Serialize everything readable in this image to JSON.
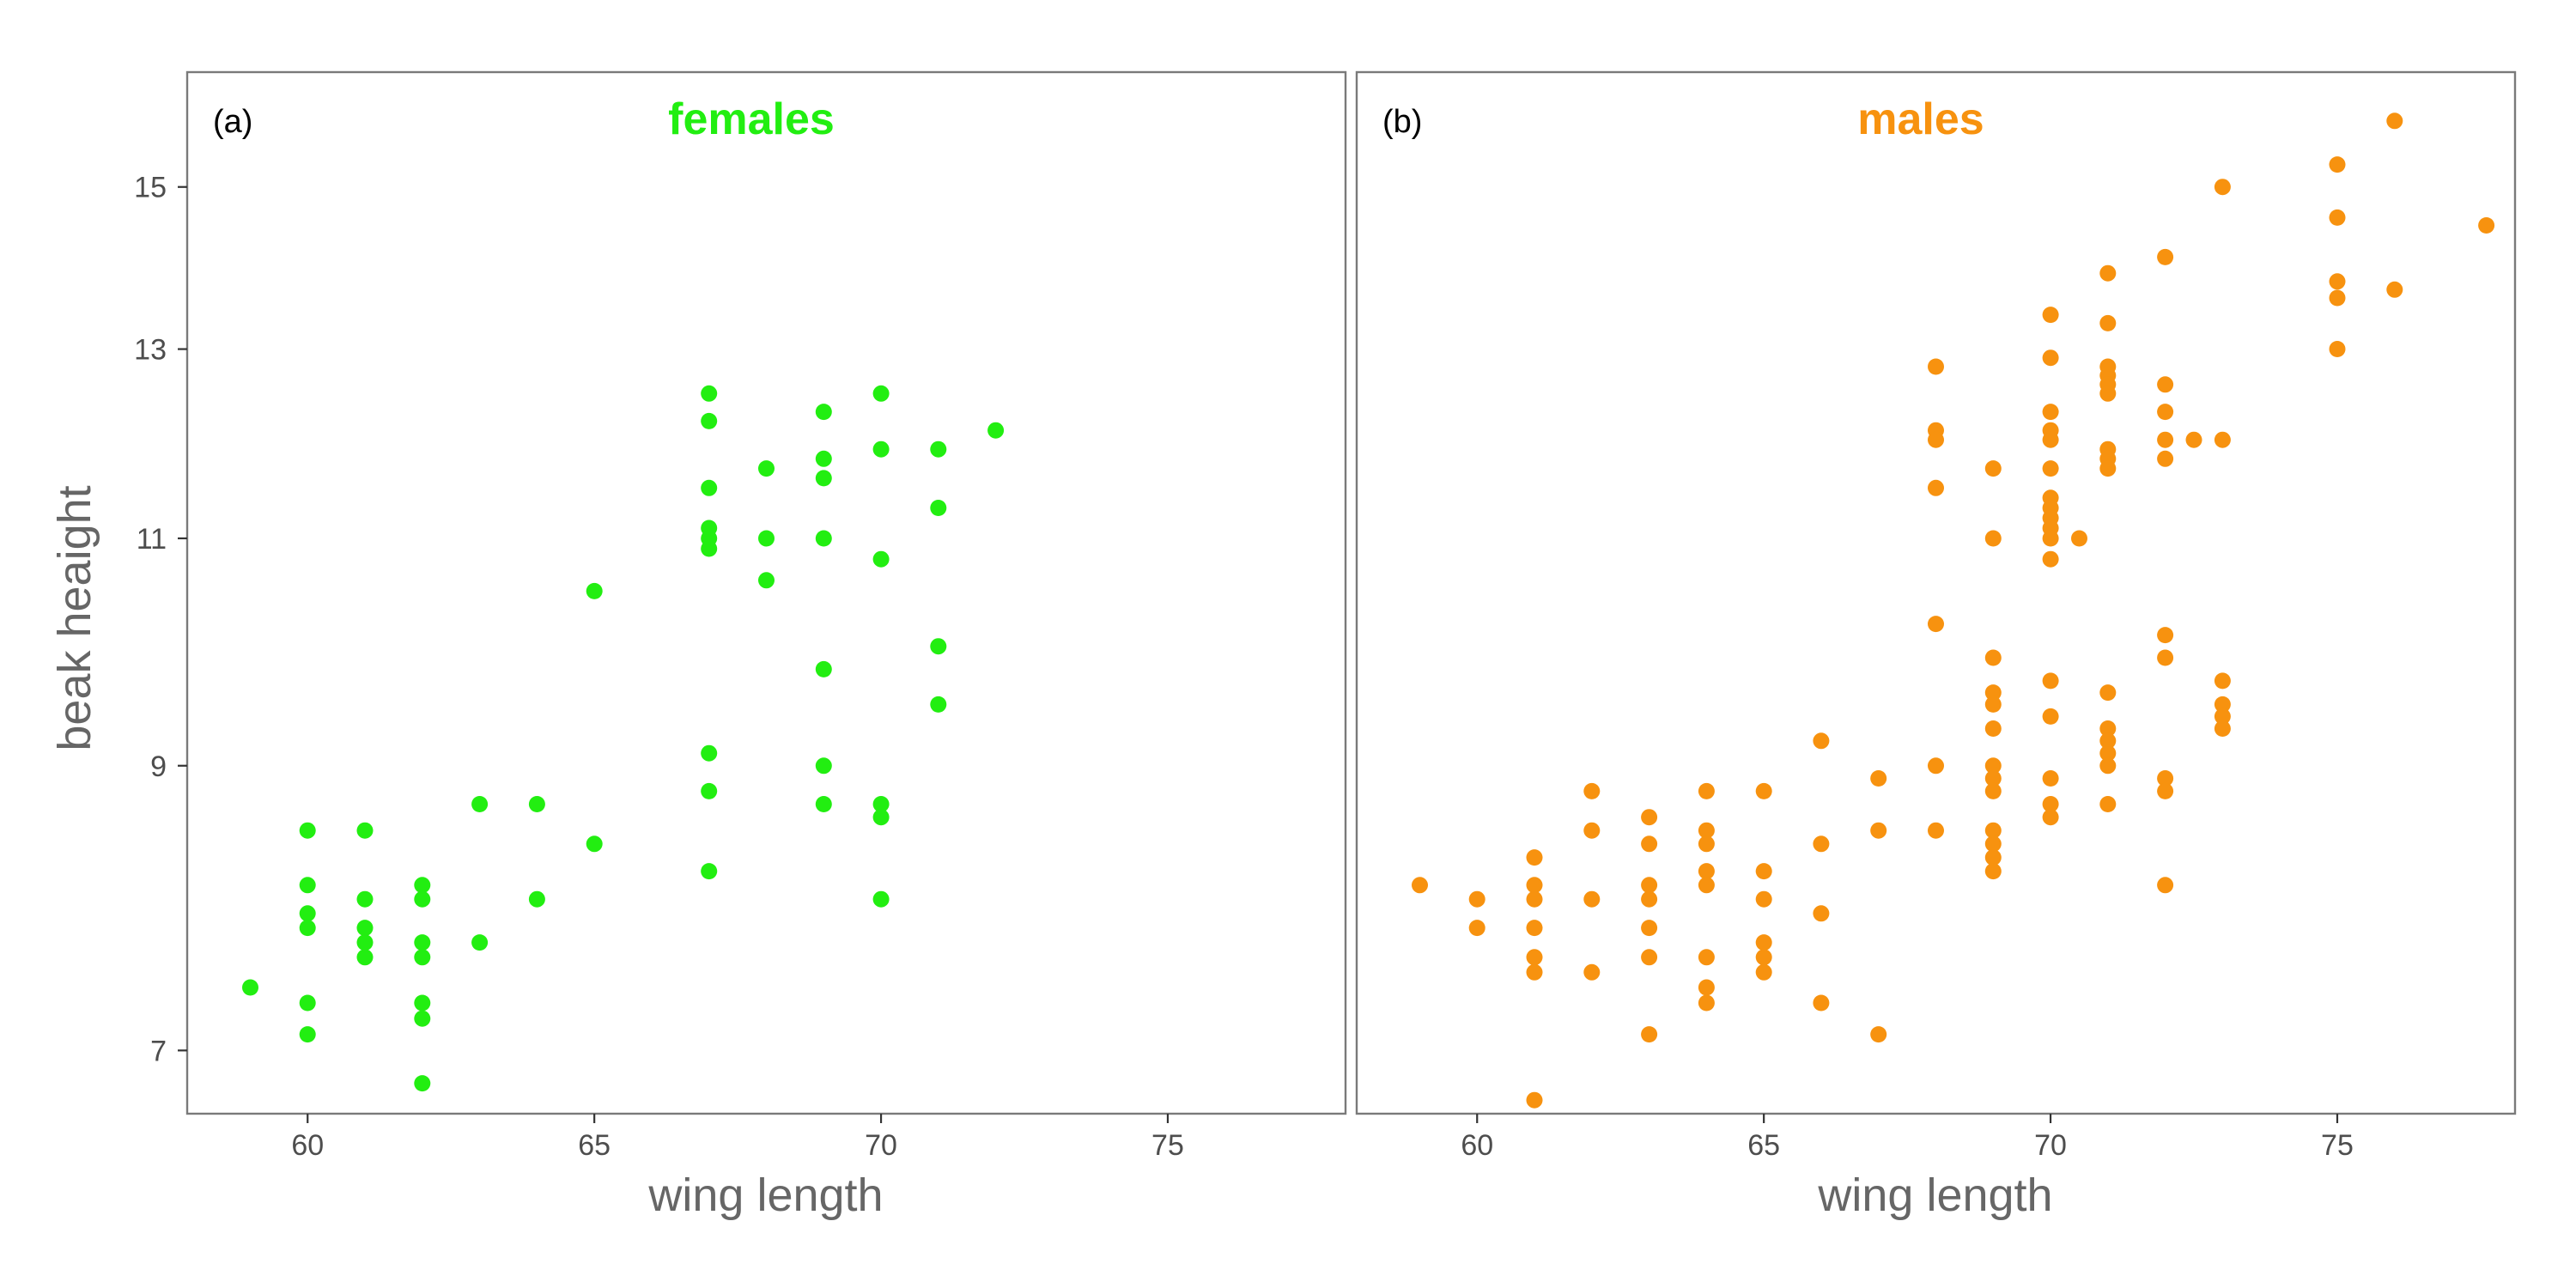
{
  "chart_data": [
    {
      "type": "scatter",
      "tag": "(a)",
      "title": "females",
      "xlabel": "wing length",
      "ylabel": "beak heaight",
      "xlim": [
        57.9,
        78.1
      ],
      "ylim": [
        6.62,
        16.6
      ],
      "y_scale": "log",
      "x_ticks": [
        60,
        65,
        70,
        75
      ],
      "y_ticks": [
        7,
        9,
        11,
        13,
        15
      ],
      "color": "#22ee11",
      "grid": false,
      "points": [
        [
          59,
          7.4
        ],
        [
          60,
          8.5
        ],
        [
          60,
          8.1
        ],
        [
          60,
          7.9
        ],
        [
          60,
          7.8
        ],
        [
          60,
          7.3
        ],
        [
          60,
          7.1
        ],
        [
          61,
          8.5
        ],
        [
          61,
          8.0
        ],
        [
          61,
          7.8
        ],
        [
          61,
          7.7
        ],
        [
          61,
          7.6
        ],
        [
          62,
          8.1
        ],
        [
          62,
          8.0
        ],
        [
          62,
          7.7
        ],
        [
          62,
          7.6
        ],
        [
          62,
          7.3
        ],
        [
          62,
          7.2
        ],
        [
          62,
          6.8
        ],
        [
          63,
          8.7
        ],
        [
          63,
          7.7
        ],
        [
          64,
          8.7
        ],
        [
          64,
          8.0
        ],
        [
          65,
          10.5
        ],
        [
          65,
          8.4
        ],
        [
          67,
          12.5
        ],
        [
          67,
          12.2
        ],
        [
          67,
          11.5
        ],
        [
          67,
          11.1
        ],
        [
          67,
          11.0
        ],
        [
          67,
          10.9
        ],
        [
          67,
          9.1
        ],
        [
          67,
          8.8
        ],
        [
          67,
          8.2
        ],
        [
          68,
          11.7
        ],
        [
          68,
          11.0
        ],
        [
          68,
          10.6
        ],
        [
          69,
          12.3
        ],
        [
          69,
          11.8
        ],
        [
          69,
          11.6
        ],
        [
          69,
          11.0
        ],
        [
          69,
          9.8
        ],
        [
          69,
          9.0
        ],
        [
          69,
          8.7
        ],
        [
          70,
          12.5
        ],
        [
          70,
          11.9
        ],
        [
          70,
          10.8
        ],
        [
          70,
          8.7
        ],
        [
          70,
          8.6
        ],
        [
          70,
          8.0
        ],
        [
          71,
          11.9
        ],
        [
          71,
          11.3
        ],
        [
          71,
          10.0
        ],
        [
          71,
          9.5
        ],
        [
          72,
          12.1
        ]
      ]
    },
    {
      "type": "scatter",
      "tag": "(b)",
      "title": "males",
      "xlabel": "wing length",
      "ylabel": "",
      "xlim": [
        57.9,
        78.1
      ],
      "ylim": [
        6.62,
        16.6
      ],
      "y_scale": "log",
      "x_ticks": [
        60,
        65,
        70,
        75
      ],
      "y_ticks": [
        7,
        9,
        11,
        13,
        15
      ],
      "color": "#f7920f",
      "grid": false,
      "points": [
        [
          59,
          8.1
        ],
        [
          60,
          8.0
        ],
        [
          60,
          7.8
        ],
        [
          61,
          8.3
        ],
        [
          61,
          8.1
        ],
        [
          61,
          8.0
        ],
        [
          61,
          7.8
        ],
        [
          61,
          7.6
        ],
        [
          61,
          7.5
        ],
        [
          61,
          6.7
        ],
        [
          62,
          8.8
        ],
        [
          62,
          8.5
        ],
        [
          62,
          8.0
        ],
        [
          62,
          7.5
        ],
        [
          63,
          8.6
        ],
        [
          63,
          8.4
        ],
        [
          63,
          8.1
        ],
        [
          63,
          8.0
        ],
        [
          63,
          7.8
        ],
        [
          63,
          7.6
        ],
        [
          63,
          7.1
        ],
        [
          64,
          8.8
        ],
        [
          64,
          8.5
        ],
        [
          64,
          8.4
        ],
        [
          64,
          8.2
        ],
        [
          64,
          8.1
        ],
        [
          64,
          7.6
        ],
        [
          64,
          7.4
        ],
        [
          64,
          7.3
        ],
        [
          65,
          8.8
        ],
        [
          65,
          8.2
        ],
        [
          65,
          8.0
        ],
        [
          65,
          7.7
        ],
        [
          65,
          7.6
        ],
        [
          65,
          7.5
        ],
        [
          66,
          9.2
        ],
        [
          66,
          8.4
        ],
        [
          66,
          7.9
        ],
        [
          66,
          7.3
        ],
        [
          67,
          8.9
        ],
        [
          67,
          8.5
        ],
        [
          67,
          7.1
        ],
        [
          68,
          12.8
        ],
        [
          68,
          12.1
        ],
        [
          68,
          12.0
        ],
        [
          68,
          11.5
        ],
        [
          68,
          10.2
        ],
        [
          68,
          9.0
        ],
        [
          68,
          8.5
        ],
        [
          69,
          11.7
        ],
        [
          69,
          11.0
        ],
        [
          69,
          9.9
        ],
        [
          69,
          9.6
        ],
        [
          69,
          9.5
        ],
        [
          69,
          9.3
        ],
        [
          69,
          9.0
        ],
        [
          69,
          8.9
        ],
        [
          69,
          8.8
        ],
        [
          69,
          8.5
        ],
        [
          69,
          8.4
        ],
        [
          69,
          8.3
        ],
        [
          69,
          8.2
        ],
        [
          70,
          13.4
        ],
        [
          70,
          12.9
        ],
        [
          70,
          12.3
        ],
        [
          70,
          12.1
        ],
        [
          70,
          12.0
        ],
        [
          70,
          11.7
        ],
        [
          70,
          11.4
        ],
        [
          70,
          11.3
        ],
        [
          70,
          11.2
        ],
        [
          70,
          11.1
        ],
        [
          70,
          11.0
        ],
        [
          70,
          10.8
        ],
        [
          70,
          9.7
        ],
        [
          70,
          9.4
        ],
        [
          70,
          8.9
        ],
        [
          70,
          8.7
        ],
        [
          70,
          8.6
        ],
        [
          70.5,
          11.0
        ],
        [
          71,
          13.9
        ],
        [
          71,
          13.3
        ],
        [
          71,
          12.8
        ],
        [
          71,
          12.7
        ],
        [
          71,
          12.6
        ],
        [
          71,
          12.5
        ],
        [
          71,
          11.9
        ],
        [
          71,
          11.8
        ],
        [
          71,
          11.7
        ],
        [
          71,
          9.6
        ],
        [
          71,
          9.3
        ],
        [
          71,
          9.2
        ],
        [
          71,
          9.1
        ],
        [
          71,
          9.0
        ],
        [
          71,
          8.7
        ],
        [
          72,
          14.1
        ],
        [
          72,
          12.6
        ],
        [
          72,
          12.3
        ],
        [
          72,
          12.0
        ],
        [
          72,
          11.8
        ],
        [
          72,
          10.1
        ],
        [
          72,
          9.9
        ],
        [
          72,
          8.9
        ],
        [
          72,
          8.8
        ],
        [
          72,
          8.1
        ],
        [
          72.5,
          12.0
        ],
        [
          73,
          15.0
        ],
        [
          73,
          12.0
        ],
        [
          73,
          9.7
        ],
        [
          73,
          9.5
        ],
        [
          73,
          9.4
        ],
        [
          73,
          9.3
        ],
        [
          75,
          15.3
        ],
        [
          75,
          14.6
        ],
        [
          75,
          13.8
        ],
        [
          75,
          13.6
        ],
        [
          75,
          13.0
        ],
        [
          76,
          15.9
        ],
        [
          76,
          13.7
        ],
        [
          77.6,
          14.5
        ]
      ]
    }
  ]
}
